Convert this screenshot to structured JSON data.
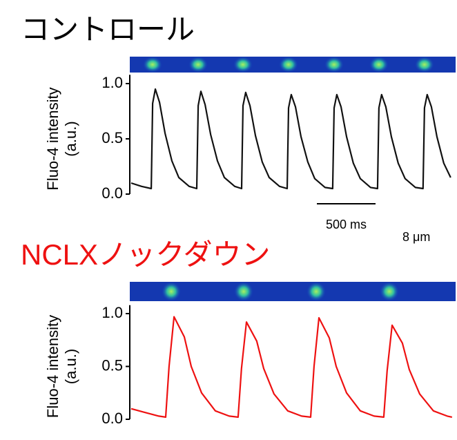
{
  "chart_data": [
    {
      "type": "line",
      "title": "コントロール",
      "title_color": "#000000",
      "ylabel": [
        "Fluo-4 intensity",
        "(a.u.)"
      ],
      "x": [
        0,
        88,
        171,
        183,
        206,
        242,
        289,
        347,
        406,
        494,
        559,
        571,
        594,
        630,
        677,
        735,
        794,
        882,
        941,
        953,
        976,
        1012,
        1059,
        1117,
        1176,
        1264,
        1329,
        1341,
        1364,
        1400,
        1447,
        1505,
        1564,
        1652,
        1717,
        1729,
        1752,
        1788,
        1835,
        1893,
        1952,
        2040,
        2099,
        2111,
        2134,
        2170,
        2217,
        2275,
        2334,
        2422,
        2487,
        2499,
        2522,
        2558,
        2605,
        2663,
        2722
      ],
      "series": [
        {
          "color": "#111111",
          "values": [
            0.1,
            0.07,
            0.05,
            0.82,
            0.95,
            0.83,
            0.55,
            0.3,
            0.15,
            0.07,
            0.05,
            0.8,
            0.93,
            0.81,
            0.54,
            0.3,
            0.15,
            0.07,
            0.05,
            0.8,
            0.92,
            0.8,
            0.53,
            0.29,
            0.15,
            0.07,
            0.05,
            0.78,
            0.9,
            0.79,
            0.52,
            0.29,
            0.14,
            0.06,
            0.05,
            0.78,
            0.9,
            0.79,
            0.52,
            0.28,
            0.14,
            0.06,
            0.05,
            0.78,
            0.9,
            0.79,
            0.52,
            0.28,
            0.14,
            0.06,
            0.05,
            0.78,
            0.9,
            0.79,
            0.52,
            0.28,
            0.15
          ]
        }
      ],
      "xlim": [
        0,
        2735
      ],
      "ylim": [
        0,
        1.08
      ],
      "yticks": [
        {
          "value": 0,
          "label": "0.0"
        },
        0.5,
        {
          "value": 1,
          "label": "1.0"
        }
      ],
      "scale_bar": {
        "value": 500,
        "label": "500 ms"
      },
      "annotation": "8 μm"
    },
    {
      "type": "line",
      "title": "NCLXノックダウン",
      "title_color": "#ee1111",
      "ylabel": [
        "Fluo-4 intensity",
        "(a.u.)"
      ],
      "x": [
        0,
        100,
        235,
        294,
        323,
        365,
        453,
        512,
        600,
        717,
        835,
        911,
        940,
        982,
        1070,
        1129,
        1217,
        1334,
        1452,
        1529,
        1558,
        1600,
        1688,
        1747,
        1835,
        1952,
        2070,
        2152,
        2181,
        2223,
        2311,
        2370,
        2458,
        2575,
        2693,
        2734
      ],
      "series": [
        {
          "color": "#ee1111",
          "values": [
            0.1,
            0.07,
            0.03,
            0.02,
            0.5,
            0.97,
            0.78,
            0.5,
            0.25,
            0.08,
            0.03,
            0.02,
            0.48,
            0.92,
            0.74,
            0.48,
            0.24,
            0.08,
            0.03,
            0.02,
            0.5,
            0.96,
            0.77,
            0.5,
            0.25,
            0.08,
            0.03,
            0.02,
            0.46,
            0.89,
            0.72,
            0.47,
            0.24,
            0.08,
            0.03,
            0.02
          ]
        }
      ],
      "xlim": [
        0,
        2735
      ],
      "ylim": [
        0,
        1.08
      ],
      "yticks": [
        {
          "value": 0,
          "label": "0.0"
        },
        0.5,
        {
          "value": 1,
          "label": "1.0"
        }
      ]
    }
  ]
}
